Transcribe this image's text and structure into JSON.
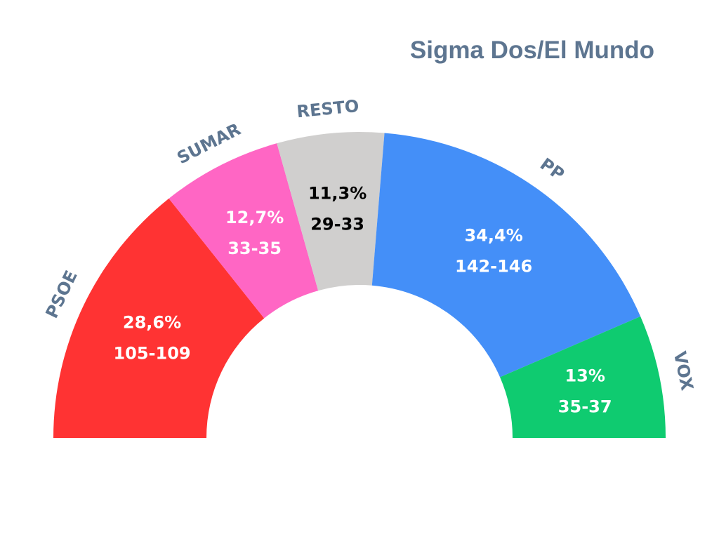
{
  "chart_data": {
    "type": "pie",
    "subtype": "half-donut",
    "title": "Sigma Dos/El Mundo",
    "series": [
      {
        "name": "PSOE",
        "percent": 28.6,
        "percent_label": "28,6%",
        "seats_label": "105-109",
        "color": "#ff3333",
        "text_color": "#ffffff"
      },
      {
        "name": "SUMAR",
        "percent": 12.7,
        "percent_label": "12,7%",
        "seats_label": "33-35",
        "color": "#ff66c4",
        "text_color": "#ffffff"
      },
      {
        "name": "RESTO",
        "percent": 11.3,
        "percent_label": "11,3%",
        "seats_label": "29-33",
        "color": "#d0cfce",
        "text_color": "#000000"
      },
      {
        "name": "PP",
        "percent": 34.4,
        "percent_label": "34,4%",
        "seats_label": "142-146",
        "color": "#448ff8",
        "text_color": "#ffffff"
      },
      {
        "name": "VOX",
        "percent": 13.0,
        "percent_label": "13%",
        "seats_label": "35-37",
        "color": "#0fcb70",
        "text_color": "#ffffff"
      }
    ],
    "label_color": "#5d7590",
    "legend": "none"
  }
}
